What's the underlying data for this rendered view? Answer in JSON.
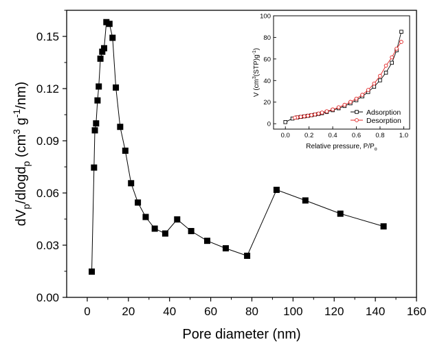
{
  "chart_data": [
    {
      "type": "line",
      "xlabel": "Pore diameter (nm)",
      "ylabel": {
        "parts": [
          [
            "dV",
            ""
          ],
          [
            "p",
            "sub"
          ],
          [
            "/dlogd",
            ""
          ],
          [
            "p",
            "sub"
          ],
          [
            " (cm",
            ""
          ],
          [
            "3",
            "sup"
          ],
          [
            " g",
            ""
          ],
          [
            "-1",
            "sup"
          ],
          [
            "/nm)",
            ""
          ]
        ]
      },
      "xlim": [
        -10,
        160
      ],
      "ylim": [
        0,
        0.165
      ],
      "xticks": [
        0,
        20,
        40,
        60,
        80,
        100,
        120,
        140,
        160
      ],
      "yticks": [
        0.0,
        0.03,
        0.06,
        0.09,
        0.12,
        0.15
      ],
      "ytick_labels": [
        "0.00",
        "0.03",
        "0.06",
        "0.09",
        "0.12",
        "0.15"
      ],
      "series": [
        {
          "marker": "filled-square",
          "color": "#000000",
          "x": [
            2.2,
            3.3,
            3.7,
            4.3,
            5.0,
            5.6,
            6.4,
            7.3,
            8.2,
            9.3,
            10.8,
            12.3,
            13.9,
            16.0,
            18.5,
            21.3,
            24.6,
            28.4,
            32.8,
            37.9,
            43.7,
            50.5,
            58.3,
            67.3,
            77.7,
            92.0,
            106.0,
            123.0,
            144.0
          ],
          "y": [
            0.0148,
            0.0746,
            0.096,
            0.1,
            0.1132,
            0.1212,
            0.1372,
            0.1412,
            0.1432,
            0.1582,
            0.1572,
            0.1492,
            0.1206,
            0.098,
            0.0843,
            0.0656,
            0.0545,
            0.0462,
            0.0395,
            0.0367,
            0.0448,
            0.0381,
            0.0325,
            0.0282,
            0.0239,
            0.0618,
            0.0557,
            0.0481,
            0.0408
          ]
        }
      ]
    },
    {
      "type": "line",
      "xlabel": {
        "parts": [
          [
            "Relative pressure, P/P",
            ""
          ],
          [
            "o",
            "sub"
          ]
        ]
      },
      "ylabel": {
        "parts": [
          [
            "V (cm",
            ""
          ],
          [
            "3",
            "sup"
          ],
          [
            "(STP)g",
            ""
          ],
          [
            "-1",
            "sup"
          ],
          [
            ")",
            ""
          ]
        ]
      },
      "xlim": [
        -0.1,
        1.05
      ],
      "ylim": [
        -5,
        100
      ],
      "xticks": [
        0.0,
        0.2,
        0.4,
        0.6,
        0.8,
        1.0
      ],
      "xtick_labels": [
        "0.0",
        "0.2",
        "0.4",
        "0.6",
        "0.8",
        "1.0"
      ],
      "yticks": [
        0,
        20,
        40,
        60,
        80,
        100
      ],
      "legend": "lower-right",
      "series": [
        {
          "name": "Adsorption",
          "marker": "open-square",
          "color": "#000000",
          "x": [
            0.0,
            0.06,
            0.1,
            0.13,
            0.16,
            0.19,
            0.22,
            0.25,
            0.28,
            0.31,
            0.35,
            0.4,
            0.45,
            0.5,
            0.55,
            0.6,
            0.65,
            0.7,
            0.75,
            0.8,
            0.85,
            0.9,
            0.94,
            0.98
          ],
          "y": [
            1.5,
            4.8,
            5.8,
            6.3,
            6.8,
            7.3,
            7.9,
            8.5,
            9.1,
            9.8,
            10.9,
            12.5,
            14.3,
            16.4,
            18.9,
            21.8,
            25.3,
            29.4,
            34.3,
            40.2,
            47.3,
            56.5,
            68.0,
            85.2
          ]
        },
        {
          "name": "Desorption",
          "marker": "open-circle",
          "color": "#e02020",
          "x": [
            0.98,
            0.94,
            0.9,
            0.85,
            0.8,
            0.75,
            0.7,
            0.65,
            0.6,
            0.55,
            0.5,
            0.45,
            0.4,
            0.35,
            0.31,
            0.28,
            0.25,
            0.22,
            0.19,
            0.16,
            0.13,
            0.1,
            0.08
          ],
          "y": [
            75.8,
            69.5,
            61.5,
            53.8,
            44.3,
            37.2,
            31.3,
            26.8,
            23.2,
            20.2,
            17.5,
            15.2,
            13.2,
            11.5,
            10.3,
            9.4,
            8.6,
            8.0,
            7.4,
            6.9,
            6.4,
            5.9,
            5.6
          ]
        }
      ]
    }
  ]
}
